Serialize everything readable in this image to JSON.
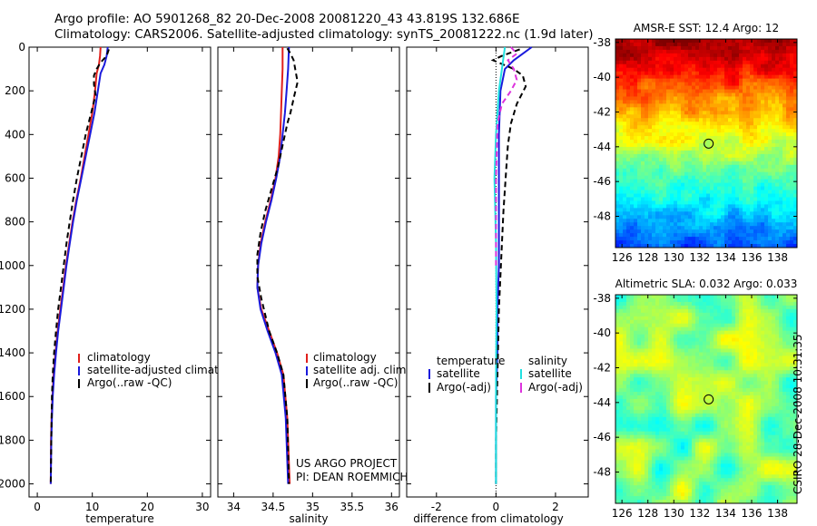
{
  "header": {
    "line1": "Argo profile: AO 5901268_82 20-Dec-2008 20081220_43 43.819S 132.686E",
    "line2": "Climatology: CARS2006. Satellite-adjusted climatology: synTS_20081222.nc (1.9d later)"
  },
  "stamp": "CSIRO 28-Dec-2008 10:31:35",
  "colors": {
    "red": "#e0201c",
    "blue": "#1a1adc",
    "black": "#000000",
    "cyan": "#22e0e0",
    "magenta": "#dd33dd",
    "axis": "#000000"
  },
  "chart_data": [
    {
      "id": "temperature",
      "type": "line",
      "xlabel": "temperature",
      "ylabel": "",
      "xlim": [
        -1.5,
        31.5
      ],
      "ylim": [
        2060,
        0
      ],
      "xticks": [
        0,
        10,
        20,
        30
      ],
      "yticks": [
        0,
        200,
        400,
        600,
        800,
        1000,
        1200,
        1400,
        1600,
        1800,
        2000
      ],
      "legend": [
        "climatology",
        "satellite-adjusted climatology",
        "Argo(..raw -QC)"
      ],
      "series": [
        {
          "name": "climatology",
          "color": "red",
          "dash": false,
          "x": [
            11.5,
            11.4,
            11.2,
            10.8,
            10.5,
            10.0,
            9.3,
            8.6,
            7.9,
            7.1,
            6.4,
            5.8,
            5.2,
            4.7,
            4.2,
            3.7,
            3.3,
            2.95,
            2.75,
            2.6,
            2.5,
            2.45
          ],
          "y": [
            0,
            40,
            80,
            120,
            200,
            300,
            400,
            500,
            600,
            700,
            800,
            900,
            1000,
            1100,
            1200,
            1300,
            1400,
            1500,
            1600,
            1700,
            1800,
            2000
          ]
        },
        {
          "name": "satellite-adjusted climatology",
          "color": "blue",
          "dash": false,
          "x": [
            12.8,
            12.6,
            12.2,
            11.5,
            11.0,
            10.4,
            9.6,
            8.8,
            8.0,
            7.2,
            6.5,
            5.9,
            5.3,
            4.8,
            4.3,
            3.8,
            3.4,
            3.05,
            2.8,
            2.65,
            2.55,
            2.45
          ],
          "y": [
            0,
            40,
            80,
            120,
            200,
            300,
            400,
            500,
            600,
            700,
            800,
            900,
            1000,
            1100,
            1200,
            1300,
            1400,
            1500,
            1600,
            1700,
            1800,
            2000
          ]
        },
        {
          "name": "Argo(..raw -QC)",
          "color": "black",
          "dash": true,
          "x": [
            13.0,
            12.6,
            11.5,
            10.8,
            10.3,
            10.3,
            10.6,
            9.8,
            8.8,
            8.0,
            7.2,
            6.5,
            5.9,
            5.3,
            4.8,
            4.3,
            3.8,
            3.4,
            3.05,
            2.8,
            2.65,
            2.55,
            2.45
          ],
          "y": [
            10,
            40,
            70,
            100,
            130,
            170,
            220,
            300,
            400,
            500,
            600,
            700,
            800,
            900,
            1000,
            1100,
            1200,
            1300,
            1400,
            1500,
            1600,
            1800,
            2000
          ]
        }
      ]
    },
    {
      "id": "salinity",
      "type": "line",
      "xlabel": "salinity",
      "ylabel": "",
      "xlim": [
        33.8,
        36.1
      ],
      "ylim": [
        2060,
        0
      ],
      "xticks": [
        34,
        34.5,
        35,
        35.5,
        36
      ],
      "yticks": [
        0,
        200,
        400,
        600,
        800,
        1000,
        1200,
        1400,
        1600,
        1800,
        2000
      ],
      "legend": [
        "climatology",
        "satellite adj. clim.",
        "Argo(..raw -QC)"
      ],
      "annotation": [
        "US ARGO PROJECT",
        "PI: DEAN ROEMMICH"
      ],
      "series": [
        {
          "name": "climatology",
          "color": "red",
          "dash": false,
          "x": [
            34.62,
            34.62,
            34.61,
            34.6,
            34.59,
            34.57,
            34.53,
            34.47,
            34.4,
            34.34,
            34.31,
            34.3,
            34.35,
            34.45,
            34.55,
            34.63,
            34.68,
            34.71
          ],
          "y": [
            0,
            100,
            200,
            300,
            400,
            500,
            600,
            700,
            800,
            900,
            1000,
            1100,
            1200,
            1300,
            1400,
            1500,
            1700,
            2000
          ]
        },
        {
          "name": "satellite adj. clim.",
          "color": "blue",
          "dash": false,
          "x": [
            34.7,
            34.69,
            34.67,
            34.65,
            34.62,
            34.59,
            34.54,
            34.48,
            34.41,
            34.35,
            34.31,
            34.3,
            34.34,
            34.43,
            34.53,
            34.61,
            34.66,
            34.69
          ],
          "y": [
            0,
            100,
            200,
            300,
            400,
            500,
            600,
            700,
            800,
            900,
            1000,
            1100,
            1200,
            1300,
            1400,
            1500,
            1700,
            2000
          ]
        },
        {
          "name": "Argo(..raw -QC)",
          "color": "black",
          "dash": true,
          "x": [
            34.68,
            34.72,
            34.76,
            34.78,
            34.81,
            34.77,
            34.72,
            34.68,
            34.62,
            34.56,
            34.48,
            34.4,
            34.34,
            34.3,
            34.3,
            34.35,
            34.45,
            34.55,
            34.63,
            34.68,
            34.7
          ],
          "y": [
            5,
            30,
            60,
            100,
            160,
            220,
            300,
            350,
            450,
            550,
            650,
            750,
            850,
            950,
            1050,
            1150,
            1300,
            1400,
            1500,
            1700,
            2000
          ]
        }
      ]
    },
    {
      "id": "difference",
      "type": "line",
      "xlabel": "difference from climatology",
      "ylabel": "",
      "xlim": [
        -3.0,
        3.1
      ],
      "ylim": [
        2060,
        0
      ],
      "xticks": [
        -2,
        0,
        2
      ],
      "yticks": [
        0,
        200,
        400,
        600,
        800,
        1000,
        1200,
        1400,
        1600,
        1800,
        2000
      ],
      "legend": [
        "temperature",
        "satellite",
        "Argo(-adj)",
        "salinity",
        "satellite",
        "Argo(-adj)"
      ],
      "series": [
        {
          "name": "temperature satellite",
          "color": "blue",
          "dash": false,
          "x": [
            1.2,
            0.9,
            0.6,
            0.3,
            0.15,
            0.1,
            0.1,
            0.1,
            0.1,
            0.05,
            0.05,
            0.0,
            0.0,
            0.0,
            0.0
          ],
          "y": [
            0,
            30,
            60,
            100,
            200,
            400,
            600,
            800,
            1000,
            1200,
            1400,
            1600,
            1800,
            1900,
            2000
          ]
        },
        {
          "name": "temperature Argo(-adj)",
          "color": "black",
          "dash": true,
          "x": [
            0.8,
            0.6,
            0.2,
            -0.1,
            0.6,
            0.9,
            1.0,
            0.7,
            0.5,
            0.4,
            0.35,
            0.3,
            0.25,
            0.2,
            0.1,
            0.05,
            0.0,
            0.0
          ],
          "y": [
            10,
            20,
            40,
            60,
            100,
            130,
            180,
            260,
            350,
            450,
            550,
            650,
            750,
            900,
            1200,
            1500,
            1800,
            2000
          ]
        },
        {
          "name": "salinity satellite",
          "color": "cyan",
          "dash": false,
          "x": [
            0.3,
            0.2,
            0.1,
            0.0,
            -0.05,
            0.0,
            0.02,
            0.0,
            0.0,
            0.0
          ],
          "y": [
            0,
            100,
            200,
            400,
            600,
            900,
            1200,
            1500,
            1800,
            2000
          ]
        },
        {
          "name": "salinity Argo(-adj)",
          "color": "magenta",
          "dash": true,
          "x": [
            0.5,
            0.7,
            0.4,
            0.6,
            0.7,
            0.5,
            0.2,
            0.05,
            0.0,
            0.0
          ],
          "y": [
            0,
            30,
            60,
            100,
            150,
            200,
            260,
            350,
            600,
            1000
          ]
        }
      ]
    },
    {
      "id": "sst-map",
      "type": "heatmap",
      "title": "AMSR-E SST: 12.4 Argo: 12",
      "xlim": [
        125.5,
        139.5
      ],
      "ylim": [
        -49.8,
        -37.8
      ],
      "xticks": [
        126,
        128,
        130,
        132,
        134,
        136,
        138
      ],
      "yticks": [
        -38,
        -40,
        -42,
        -44,
        -46,
        -48
      ],
      "marker": {
        "lon": 132.686,
        "lat": -43.819
      },
      "colormap": "jet",
      "rows_note": "values are SST fraction of color scale, north to south"
    },
    {
      "id": "sla-map",
      "type": "heatmap",
      "title": "Altimetric SLA: 0.032 Argo: 0.033",
      "xlim": [
        125.5,
        139.5
      ],
      "ylim": [
        -49.8,
        -37.8
      ],
      "xticks": [
        126,
        128,
        130,
        132,
        134,
        136,
        138
      ],
      "yticks": [
        -38,
        -40,
        -42,
        -44,
        -46,
        -48
      ],
      "marker": {
        "lon": 132.686,
        "lat": -43.819
      },
      "colormap": "jet"
    }
  ]
}
